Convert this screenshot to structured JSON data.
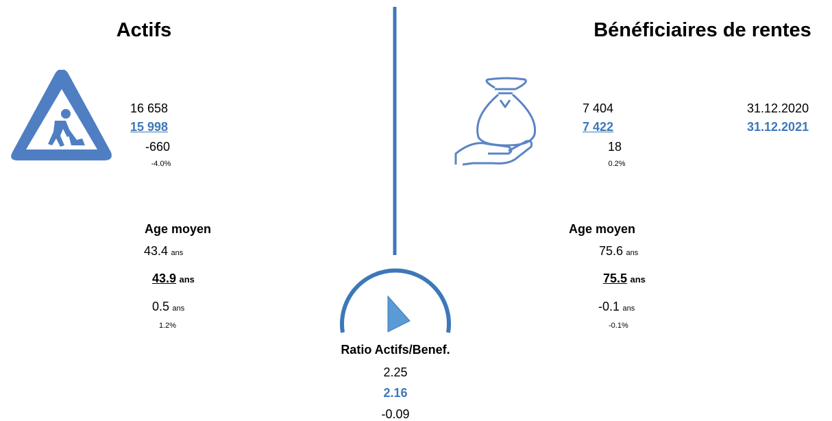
{
  "actifs": {
    "title": "Actifs",
    "count_previous": "16 658",
    "count_current": "15 998",
    "count_change": "-660",
    "count_change_pct": "-4.0%",
    "age_title": "Age moyen",
    "age_previous": "43.4",
    "age_current": "43.9",
    "age_change": "0.5",
    "age_change_pct": "1.2%"
  },
  "beneficiaires": {
    "title": "Bénéficiaires de rentes",
    "count_previous": "7 404",
    "count_current": "7 422",
    "count_change": "18",
    "count_change_pct": "0.2%",
    "age_title": "Age moyen",
    "age_previous": "75.6",
    "age_current": "75.5",
    "age_change": "-0.1",
    "age_change_pct": "-0.1%"
  },
  "dates": {
    "previous": "31.12.2020",
    "current": "31.12.2021"
  },
  "unit": "ans",
  "ratio": {
    "title": "Ratio Actifs/Benef.",
    "previous": "2.25",
    "current": "2.16",
    "change": "-0.09"
  }
}
